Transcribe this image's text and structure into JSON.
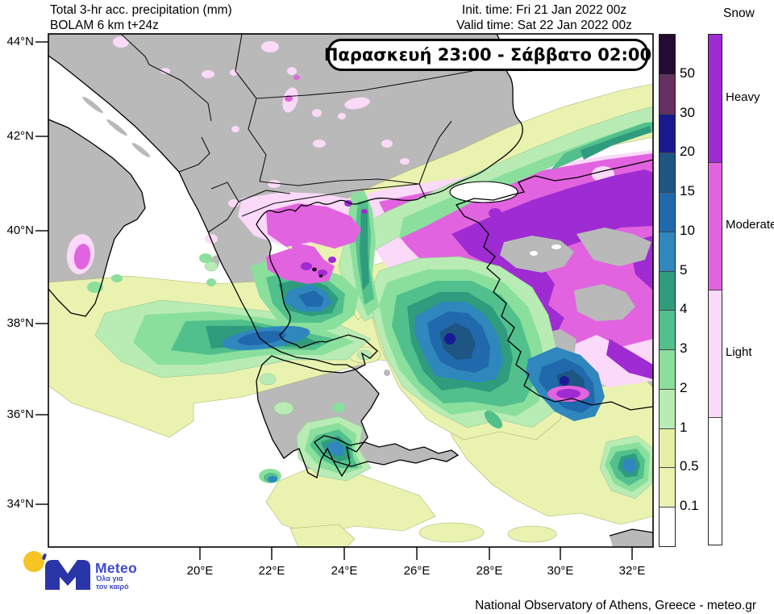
{
  "header": {
    "product_line1": "Total 3-hr acc. precipitation (mm)",
    "product_line2": "BOLAM 6 km t+24z",
    "init_time": "Init. time: Fri 21 Jan 2022 00z",
    "valid_time": "Valid time: Sat 22 Jan 2022 00z"
  },
  "map": {
    "period_label": "Παρασκευή 23:00 - Σάββατο 02:00",
    "lat_ticks": [
      "44°N",
      "42°N",
      "40°N",
      "38°N",
      "36°N",
      "34°N"
    ],
    "lon_ticks": [
      "20°E",
      "22°E",
      "24°E",
      "26°E",
      "28°E",
      "30°E",
      "32°E"
    ],
    "colors": {
      "land": "#b9b9b9",
      "sea": "#ffffff",
      "coastline": "#000000"
    }
  },
  "legend": {
    "precip": {
      "boundary_values": [
        "50",
        "30",
        "20",
        "15",
        "10",
        "5",
        "4",
        "3",
        "2",
        "1",
        "0.5",
        "0.1"
      ],
      "colors_top_to_bottom": [
        "#250a33",
        "#663060",
        "#1a1a8f",
        "#1d5583",
        "#2069ac",
        "#2f87bd",
        "#2f9c7d",
        "#51c08c",
        "#8adf9d",
        "#b8ecb4",
        "#e6efa6",
        "#eaf2b0",
        "#ffffff"
      ]
    },
    "snow": {
      "title": "Snow",
      "labels": [
        "Heavy",
        "Moderate",
        "Light"
      ],
      "colors_top_to_bottom": [
        "#9f2bd3",
        "#e263df",
        "#fbd9f8",
        "#ffffff"
      ]
    }
  },
  "footer": {
    "attribution": "National Observatory of Athens, Greece - meteo.gr",
    "logo": {
      "brand": "Meteo",
      "tagline_line1": "Όλα για",
      "tagline_line2": "τον καιρό",
      "brand_blue": "#2a35a8",
      "brand_yellow": "#f6c423"
    }
  }
}
